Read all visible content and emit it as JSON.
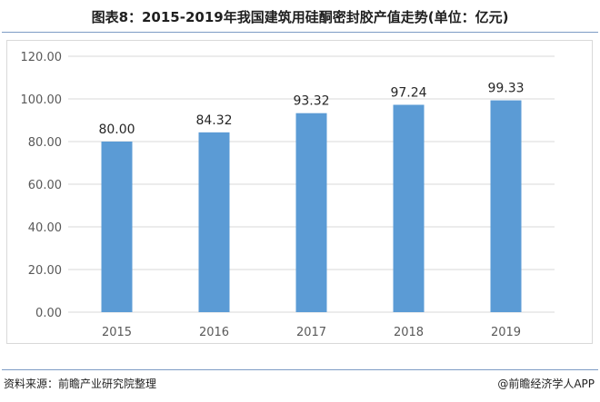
{
  "header": {
    "title": "图表8：2015-2019年我国建筑用硅酮密封胶产值走势(单位：亿元)"
  },
  "footer": {
    "source": "资料来源：前瞻产业研究院整理",
    "brand": "@前瞻经济学人APP"
  },
  "colors": {
    "bar": "#5b9bd5",
    "grid": "#d9d9d9",
    "axis_text": "#595959",
    "rule": "#7d9cc4"
  },
  "chart_data": {
    "type": "bar",
    "categories": [
      "2015",
      "2016",
      "2017",
      "2018",
      "2019"
    ],
    "values": [
      80.0,
      84.32,
      93.32,
      97.24,
      99.33
    ],
    "value_labels": [
      "80.00",
      "84.32",
      "93.32",
      "97.24",
      "99.33"
    ],
    "ylim": [
      0,
      120
    ],
    "yticks": [
      "0.00",
      "20.00",
      "40.00",
      "60.00",
      "80.00",
      "100.00",
      "120.00"
    ],
    "title": "图表8：2015-2019年我国建筑用硅酮密封胶产值走势(单位：亿元)",
    "xlabel": "",
    "ylabel": "",
    "grid": true,
    "legend": "none"
  }
}
